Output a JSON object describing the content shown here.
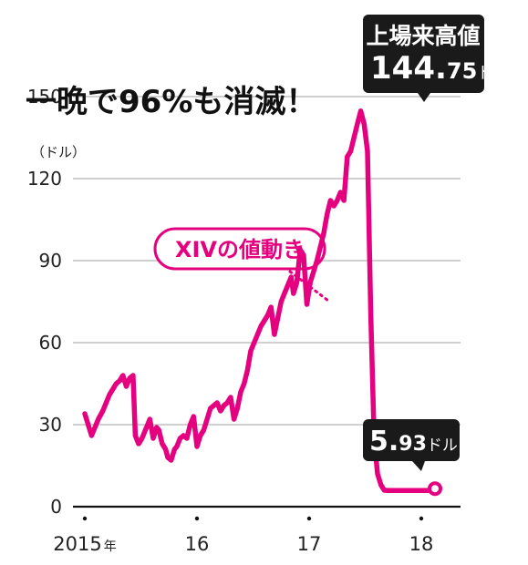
{
  "headline": "一晩で96%も消滅！",
  "unit_label": "（ドル）",
  "series_label": "XIVの値動き",
  "callout_high": {
    "title": "上場来高値",
    "value_big": "144.",
    "value_small": "75",
    "unit": "ドル"
  },
  "callout_low": {
    "value_big": "5.",
    "value_small": "93",
    "unit": "ドル"
  },
  "colors": {
    "series": "#e4007f",
    "text": "#222222",
    "grid": "#b5b5b5",
    "callout_bg": "#1a1a1a"
  },
  "chart_data": {
    "type": "line",
    "title": "一晩で96%も消滅！",
    "ylabel": "（ドル）",
    "xlabel": "",
    "ylim": [
      0,
      150
    ],
    "yticks": [
      0,
      30,
      60,
      90,
      120,
      150
    ],
    "xticks": [
      {
        "x": 2015.0,
        "label": "2015",
        "suffix": "年"
      },
      {
        "x": 2016.0,
        "label": "16"
      },
      {
        "x": 2017.0,
        "label": "17"
      },
      {
        "x": 2018.0,
        "label": "18"
      }
    ],
    "grid": true,
    "series": [
      {
        "name": "XIVの値動き",
        "x": [
          2015.0,
          2015.03,
          2015.06,
          2015.09,
          2015.12,
          2015.16,
          2015.19,
          2015.22,
          2015.25,
          2015.28,
          2015.31,
          2015.34,
          2015.37,
          2015.4,
          2015.43,
          2015.45,
          2015.48,
          2015.51,
          2015.54,
          2015.56,
          2015.58,
          2015.61,
          2015.64,
          2015.66,
          2015.69,
          2015.72,
          2015.74,
          2015.77,
          2015.8,
          2015.82,
          2015.85,
          2015.88,
          2015.91,
          2015.94,
          2015.97,
          2016.0,
          2016.03,
          2016.06,
          2016.09,
          2016.12,
          2016.15,
          2016.18,
          2016.21,
          2016.24,
          2016.27,
          2016.3,
          2016.33,
          2016.36,
          2016.39,
          2016.42,
          2016.45,
          2016.48,
          2016.51,
          2016.54,
          2016.57,
          2016.6,
          2016.63,
          2016.66,
          2016.69,
          2016.72,
          2016.75,
          2016.78,
          2016.81,
          2016.84,
          2016.86,
          2016.89,
          2016.92,
          2016.95,
          2016.98,
          2017.01,
          2017.04,
          2017.07,
          2017.1,
          2017.13,
          2017.16,
          2017.19,
          2017.22,
          2017.25,
          2017.28,
          2017.31,
          2017.34,
          2017.37,
          2017.4,
          2017.43,
          2017.46,
          2017.49,
          2017.52,
          2017.55,
          2017.58,
          2017.61,
          2017.64,
          2017.67,
          2017.7,
          2017.73,
          2017.76,
          2017.79,
          2017.82,
          2017.85,
          2017.88,
          2017.91,
          2017.94,
          2017.97,
          2018.0,
          2018.02,
          2018.04,
          2018.06,
          2018.07,
          2018.08,
          2018.085,
          2018.09,
          2018.095,
          2018.1
        ],
        "y": [
          34,
          30,
          26,
          29,
          32,
          35,
          38,
          41,
          43,
          45,
          46,
          48,
          44,
          47,
          48,
          26,
          23,
          25,
          28,
          30,
          32,
          25,
          29,
          28,
          23,
          21,
          18,
          17,
          21,
          22,
          25,
          26,
          25,
          30,
          33,
          22,
          26,
          28,
          32,
          36,
          37,
          38,
          35,
          37,
          38,
          40,
          32,
          36,
          42,
          45,
          50,
          57,
          60,
          63,
          66,
          68,
          70,
          73,
          63,
          69,
          75,
          78,
          81,
          84,
          78,
          82,
          94,
          92,
          74,
          82,
          86,
          90,
          95,
          100,
          107,
          112,
          110,
          112,
          115,
          112,
          128,
          130,
          135,
          140,
          144.75,
          140,
          130,
          70,
          25,
          12,
          8,
          6,
          5.93,
          5.93,
          5.93,
          5.93,
          5.93,
          5.93,
          5.93,
          5.93,
          5.93,
          5.93,
          5.93,
          5.93,
          5.93,
          5.93,
          5.93,
          5.93,
          5.93,
          5.93,
          5.93,
          5.93
        ],
        "note": ""
      }
    ]
  }
}
